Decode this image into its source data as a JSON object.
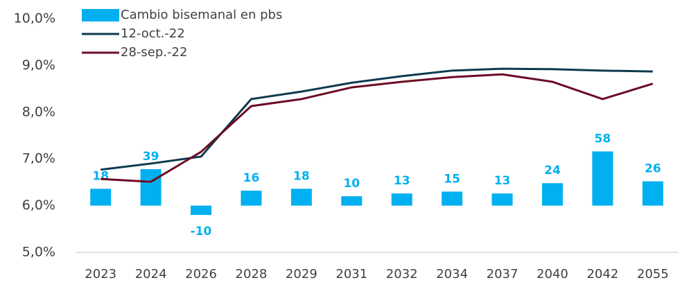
{
  "chart_data": {
    "type": "bar-line",
    "categories": [
      "2023",
      "2024",
      "2026",
      "2028",
      "2029",
      "2031",
      "2032",
      "2034",
      "2037",
      "2040",
      "2042",
      "2055"
    ],
    "series": [
      {
        "name": "Cambio bisemanal en pbs",
        "type": "bar",
        "axis": "y2",
        "color": "#00b0f0",
        "values": [
          18,
          39,
          -10,
          16,
          18,
          10,
          13,
          15,
          13,
          24,
          58,
          26
        ]
      },
      {
        "name": "12-oct.-22",
        "type": "line",
        "color": "#0d3a4f",
        "values": [
          6.77,
          6.9,
          7.05,
          8.28,
          8.44,
          8.63,
          8.77,
          8.89,
          8.93,
          8.92,
          8.89,
          8.87
        ]
      },
      {
        "name": "28-sep.-22",
        "type": "line",
        "color": "#6b0a24",
        "values": [
          6.57,
          6.51,
          7.15,
          8.13,
          8.28,
          8.53,
          8.65,
          8.75,
          8.81,
          8.65,
          8.28,
          8.61
        ]
      }
    ],
    "ylim": [
      5,
      10
    ],
    "yticks": [
      {
        "value": 5,
        "label": "5,0%"
      },
      {
        "value": 6,
        "label": "6,0%"
      },
      {
        "value": 7,
        "label": "7,0%"
      },
      {
        "value": 8,
        "label": "8,0%"
      },
      {
        "value": 9,
        "label": "9,0%"
      },
      {
        "value": 10,
        "label": "10,0%"
      }
    ],
    "y2lim": [
      -50,
      200
    ],
    "legend": "top-left"
  }
}
